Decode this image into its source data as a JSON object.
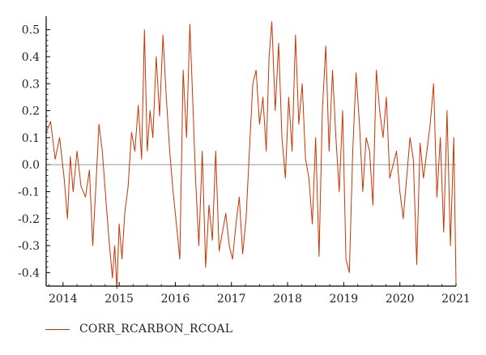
{
  "chart_data": {
    "type": "line",
    "title": "",
    "xlabel": "",
    "ylabel": "",
    "xlim": [
      2013.7,
      2021.0
    ],
    "ylim": [
      -0.45,
      0.55
    ],
    "x_ticks": [
      2014,
      2015,
      2016,
      2017,
      2018,
      2019,
      2020,
      2021
    ],
    "x_tick_labels": [
      "2014",
      "2015",
      "2016",
      "2017",
      "2018",
      "2019",
      "2020",
      "2021"
    ],
    "y_ticks": [
      -0.4,
      -0.3,
      -0.2,
      -0.1,
      0.0,
      0.1,
      0.2,
      0.3,
      0.4,
      0.5
    ],
    "y_tick_labels": [
      "-0.4",
      "-0.3",
      "-0.2",
      "-0.1",
      "0.0",
      "0.1",
      "0.2",
      "0.3",
      "0.4",
      "0.5"
    ],
    "zero_line": 0.0,
    "legend_position": "bottom-left",
    "series": [
      {
        "name": "CORR_RCARBON_RCOAL",
        "color": "#cc3300",
        "x": [
          2013.7,
          2013.78,
          2013.86,
          2013.94,
          2014.02,
          2014.08,
          2014.13,
          2014.18,
          2014.25,
          2014.32,
          2014.4,
          2014.47,
          2014.53,
          2014.58,
          2014.64,
          2014.7,
          2014.76,
          2014.82,
          2014.88,
          2014.92,
          2014.96,
          2015.0,
          2015.05,
          2015.1,
          2015.16,
          2015.22,
          2015.28,
          2015.34,
          2015.4,
          2015.45,
          2015.5,
          2015.55,
          2015.6,
          2015.66,
          2015.72,
          2015.78,
          2015.84,
          2015.9,
          2015.96,
          2016.02,
          2016.08,
          2016.14,
          2016.2,
          2016.26,
          2016.3,
          2016.36,
          2016.42,
          2016.48,
          2016.54,
          2016.6,
          2016.66,
          2016.72,
          2016.78,
          2016.84,
          2016.9,
          2016.96,
          2017.02,
          2017.08,
          2017.14,
          2017.2,
          2017.26,
          2017.32,
          2017.38,
          2017.44,
          2017.5,
          2017.56,
          2017.62,
          2017.67,
          2017.72,
          2017.78,
          2017.84,
          2017.9,
          2017.96,
          2018.02,
          2018.08,
          2018.14,
          2018.2,
          2018.26,
          2018.32,
          2018.38,
          2018.44,
          2018.5,
          2018.56,
          2018.62,
          2018.68,
          2018.74,
          2018.8,
          2018.86,
          2018.92,
          2018.98,
          2019.04,
          2019.1,
          2019.16,
          2019.22,
          2019.28,
          2019.34,
          2019.4,
          2019.46,
          2019.52,
          2019.58,
          2019.64,
          2019.7,
          2019.76,
          2019.82,
          2019.88,
          2019.94,
          2020.0,
          2020.06,
          2020.12,
          2020.18,
          2020.24,
          2020.3,
          2020.36,
          2020.42,
          2020.48,
          2020.54,
          2020.6,
          2020.66,
          2020.72,
          2020.78,
          2020.84,
          2020.9,
          2020.96,
          2021.0
        ],
        "y": [
          0.12,
          0.16,
          0.02,
          0.1,
          -0.05,
          -0.2,
          0.03,
          -0.1,
          0.05,
          -0.08,
          -0.12,
          -0.02,
          -0.3,
          -0.1,
          0.15,
          0.05,
          -0.12,
          -0.28,
          -0.42,
          -0.3,
          -0.46,
          -0.22,
          -0.35,
          -0.18,
          -0.08,
          0.12,
          0.05,
          0.22,
          0.02,
          0.5,
          0.05,
          0.2,
          0.1,
          0.4,
          0.18,
          0.48,
          0.25,
          0.05,
          -0.1,
          -0.22,
          -0.35,
          0.35,
          0.1,
          0.52,
          0.3,
          -0.05,
          -0.3,
          0.05,
          -0.38,
          -0.15,
          -0.28,
          0.05,
          -0.32,
          -0.25,
          -0.18,
          -0.3,
          -0.35,
          -0.22,
          -0.12,
          -0.33,
          -0.2,
          0.05,
          0.3,
          0.35,
          0.15,
          0.25,
          0.05,
          0.4,
          0.53,
          0.2,
          0.45,
          0.1,
          -0.05,
          0.25,
          0.05,
          0.48,
          0.15,
          0.3,
          0.02,
          -0.05,
          -0.22,
          0.1,
          -0.34,
          0.2,
          0.44,
          0.05,
          0.35,
          0.1,
          -0.1,
          0.2,
          -0.35,
          -0.4,
          0.05,
          0.34,
          0.15,
          -0.1,
          0.1,
          0.05,
          -0.15,
          0.35,
          0.2,
          0.1,
          0.25,
          -0.05,
          0.0,
          0.05,
          -0.1,
          -0.2,
          -0.05,
          0.1,
          0.02,
          -0.37,
          0.08,
          -0.05,
          0.05,
          0.15,
          0.3,
          -0.12,
          0.1,
          -0.25,
          0.2,
          -0.3,
          0.1,
          -0.44
        ]
      }
    ]
  }
}
